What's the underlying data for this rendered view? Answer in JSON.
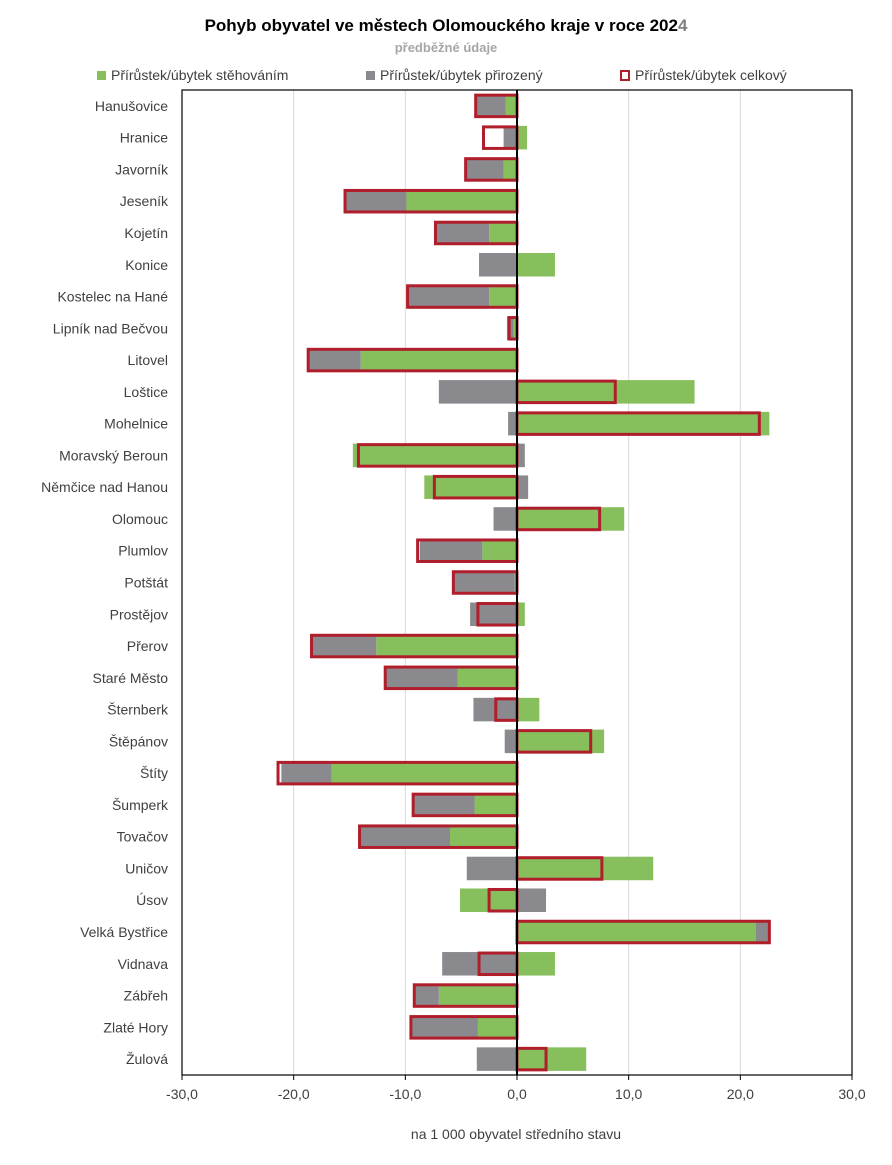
{
  "title_main": "Pohyb obyvatel ve městech Olomouckého kraje v roce 202",
  "title_tail": "4",
  "subtitle": "předběžné údaje",
  "legend": {
    "migration": "Přírůstek/úbytek stěhováním",
    "natural": "Přírůstek/úbytek přirozený",
    "total": "Přírůstek/úbytek celkový"
  },
  "colors": {
    "migration": "#86bf5c",
    "natural": "#8a8a8e",
    "total": "#b01e2c",
    "grid": "#d9d9d9"
  },
  "chart_data": {
    "type": "bar",
    "orientation": "horizontal",
    "title": "Pohyb obyvatel ve městech Olomouckého kraje v roce 2024",
    "subtitle": "předběžné údaje",
    "xlabel": "na 1 000 obyvatel středního stavu",
    "ylabel": "",
    "xlim": [
      -30,
      30
    ],
    "xticks": [
      -30,
      -20,
      -10,
      0,
      10,
      20,
      30
    ],
    "xtick_labels": [
      "-30,0",
      "-20,0",
      "-10,0",
      "0,0",
      "10,0",
      "20,0",
      "30,0"
    ],
    "grid": true,
    "legend_position": "top",
    "categories": [
      "Hanušovice",
      "Hranice",
      "Javorník",
      "Jeseník",
      "Kojetín",
      "Konice",
      "Kostelec na Hané",
      "Lipník nad Bečvou",
      "Litovel",
      "Loštice",
      "Mohelnice",
      "Moravský Beroun",
      "Němčice nad Hanou",
      "Olomouc",
      "Plumlov",
      "Potštát",
      "Prostějov",
      "Přerov",
      "Staré Město",
      "Šternberk",
      "Štěpánov",
      "Štíty",
      "Šumperk",
      "Tovačov",
      "Uničov",
      "Úsov",
      "Velká Bystřice",
      "Vidnava",
      "Zábřeh",
      "Zlaté Hory",
      "Žulová"
    ],
    "series": [
      {
        "name": "Přírůstek/úbytek stěhováním",
        "values": [
          -1.0,
          0.9,
          -1.2,
          -9.9,
          -2.5,
          3.4,
          -2.5,
          -0.3,
          -14.0,
          15.9,
          22.6,
          -14.7,
          -8.3,
          9.6,
          -3.1,
          -0.2,
          0.7,
          -12.6,
          -5.3,
          2.0,
          7.8,
          -16.6,
          -3.8,
          -6.0,
          12.2,
          -5.1,
          21.4,
          3.4,
          -7.0,
          -3.5,
          6.2
        ]
      },
      {
        "name": "Přírůstek/úbytek přirozený",
        "values": [
          -2.7,
          -1.2,
          -3.3,
          -5.5,
          -4.8,
          -3.4,
          -7.3,
          -0.6,
          -4.6,
          -7.0,
          -0.8,
          0.7,
          1.0,
          -2.1,
          -5.6,
          -5.6,
          -4.2,
          -5.7,
          -6.5,
          -3.9,
          -1.1,
          -4.5,
          -5.5,
          -8.0,
          -4.5,
          2.6,
          1.3,
          -6.7,
          -2.1,
          -5.9,
          -3.6
        ]
      },
      {
        "name": "Přírůstek/úbytek celkový",
        "values": [
          -3.7,
          -3.0,
          -4.6,
          -15.4,
          -7.3,
          0.0,
          -9.8,
          -0.7,
          -18.7,
          8.8,
          21.7,
          -14.2,
          -7.4,
          7.4,
          -8.9,
          -5.7,
          -3.5,
          -18.4,
          -11.8,
          -1.9,
          6.6,
          -21.4,
          -9.3,
          -14.1,
          7.6,
          -2.5,
          22.6,
          -3.4,
          -9.2,
          -9.5,
          2.6
        ]
      }
    ]
  }
}
